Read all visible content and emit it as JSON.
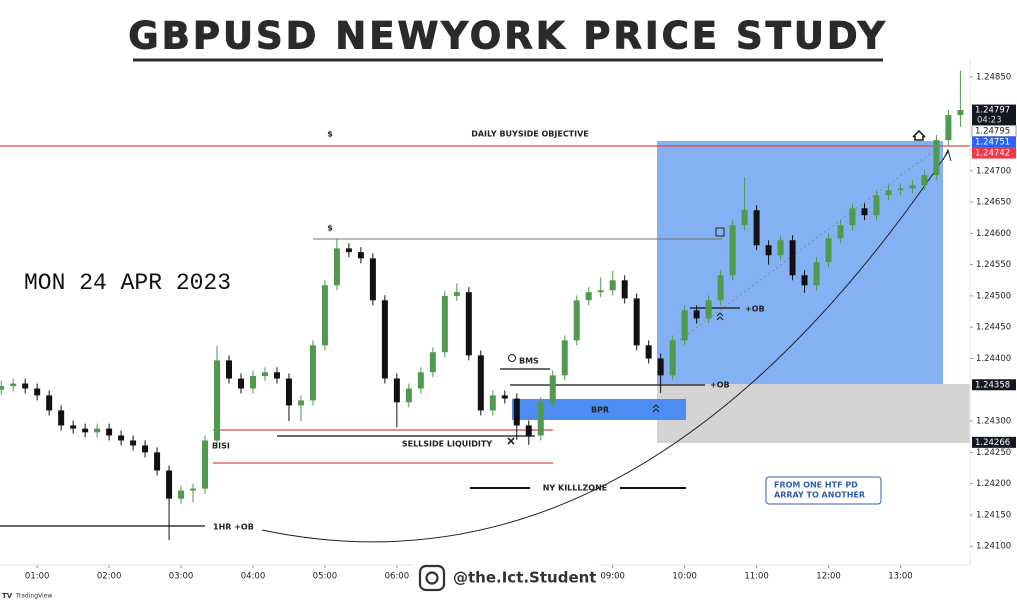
{
  "chart_data": {
    "type": "candlestick",
    "title": "GBPUSD NEWYORK PRICE STUDY",
    "date": "MON 24 APR 2023",
    "x": [
      30,
      40,
      50,
      60,
      70,
      80,
      90,
      100,
      110,
      120,
      130,
      140,
      150,
      160,
      170,
      180,
      190,
      200,
      210,
      220,
      230,
      240,
      250,
      260,
      270,
      280,
      290,
      300,
      310,
      320,
      330,
      340,
      350,
      360,
      370,
      380,
      390,
      400,
      410,
      420,
      430,
      440,
      450,
      460,
      470,
      480,
      490,
      500,
      510,
      520,
      530,
      540,
      550,
      560,
      570,
      580,
      590,
      600,
      610,
      620,
      630,
      640,
      650,
      660,
      670,
      680,
      690,
      700,
      710,
      720,
      730,
      740,
      750,
      760,
      770,
      780,
      790,
      800,
      810,
      820,
      830
    ],
    "open": [
      1.2435,
      1.24356,
      1.2436,
      1.24352,
      1.24341,
      1.24317,
      1.24293,
      1.24288,
      1.24282,
      1.24288,
      1.24277,
      1.24269,
      1.24261,
      1.2425,
      1.24221,
      1.24176,
      1.24189,
      1.24192,
      1.24269,
      1.24397,
      1.24368,
      1.24352,
      1.24372,
      1.24378,
      1.24368,
      1.24325,
      1.24333,
      1.24421,
      1.24517,
      1.24576,
      1.2457,
      1.2456,
      1.24493,
      1.24368,
      1.2433,
      1.24352,
      1.24378,
      1.2441,
      1.245,
      1.24506,
      1.24405,
      1.24317,
      1.24341,
      1.24336,
      1.24293,
      1.24277,
      1.2433,
      1.24373,
      1.24429,
      1.24493,
      1.24506,
      1.24509,
      1.24525,
      1.24496,
      1.24421,
      1.244,
      1.24373,
      1.24429,
      1.24477,
      1.24464,
      1.24493,
      1.24533,
      1.24613,
      1.24637,
      1.24581,
      1.24565,
      1.24589,
      1.24533,
      1.24517,
      1.24554,
      1.24592,
      1.24613,
      1.2464,
      1.24629,
      1.24661,
      1.24669,
      1.24672,
      1.24677,
      1.24693,
      1.24749,
      1.24789
    ],
    "high": [
      1.24364,
      1.24368,
      1.24368,
      1.2436,
      1.24349,
      1.24325,
      1.24301,
      1.24296,
      1.24296,
      1.24296,
      1.24285,
      1.24277,
      1.24269,
      1.24258,
      1.24229,
      1.24197,
      1.242,
      1.24277,
      1.2442,
      1.24405,
      1.24376,
      1.2438,
      1.24386,
      1.24386,
      1.24376,
      1.24341,
      1.24429,
      1.24525,
      1.24592,
      1.24584,
      1.24578,
      1.24568,
      1.24501,
      1.24376,
      1.2436,
      1.24386,
      1.24418,
      1.24508,
      1.2452,
      1.24514,
      1.24413,
      1.24349,
      1.24349,
      1.24344,
      1.24301,
      1.24338,
      1.24381,
      1.24437,
      1.24501,
      1.24514,
      1.2453,
      1.2454,
      1.24533,
      1.24504,
      1.24429,
      1.24408,
      1.24437,
      1.24485,
      1.24485,
      1.24501,
      1.24541,
      1.24621,
      1.2469,
      1.24645,
      1.24589,
      1.24597,
      1.24597,
      1.24541,
      1.24562,
      1.246,
      1.24621,
      1.24648,
      1.24648,
      1.24669,
      1.24677,
      1.2468,
      1.24685,
      1.24701,
      1.24757,
      1.24797,
      1.2486
    ],
    "low": [
      1.24342,
      1.24348,
      1.24344,
      1.24333,
      1.24309,
      1.24285,
      1.2428,
      1.24274,
      1.24274,
      1.24269,
      1.24261,
      1.24253,
      1.24242,
      1.24213,
      1.2411,
      1.24168,
      1.2417,
      1.24184,
      1.24261,
      1.2436,
      1.24344,
      1.24344,
      1.24364,
      1.2436,
      1.243,
      1.243,
      1.24325,
      1.24413,
      1.24509,
      1.24562,
      1.24552,
      1.24485,
      1.2436,
      1.2429,
      1.24322,
      1.24344,
      1.2437,
      1.24402,
      1.24492,
      1.24397,
      1.24309,
      1.24309,
      1.24328,
      1.2427,
      1.24262,
      1.24269,
      1.24322,
      1.24365,
      1.24421,
      1.24485,
      1.24498,
      1.24501,
      1.24488,
      1.24413,
      1.24392,
      1.24345,
      1.24365,
      1.24421,
      1.24456,
      1.24456,
      1.24485,
      1.24525,
      1.24605,
      1.24573,
      1.2455,
      1.24557,
      1.24525,
      1.24505,
      1.24509,
      1.24546,
      1.24584,
      1.24605,
      1.24621,
      1.24621,
      1.24653,
      1.24661,
      1.24664,
      1.24669,
      1.24685,
      1.24741,
      1.2477
    ],
    "close": [
      1.24356,
      1.2436,
      1.24352,
      1.24341,
      1.24317,
      1.24293,
      1.24288,
      1.24282,
      1.24288,
      1.24277,
      1.24269,
      1.24261,
      1.2425,
      1.24221,
      1.24176,
      1.24189,
      1.24192,
      1.24269,
      1.24397,
      1.24368,
      1.24352,
      1.24372,
      1.24378,
      1.24368,
      1.24325,
      1.24333,
      1.24421,
      1.24517,
      1.24576,
      1.2457,
      1.2456,
      1.24493,
      1.24368,
      1.2433,
      1.24352,
      1.24378,
      1.2441,
      1.245,
      1.24506,
      1.24405,
      1.24317,
      1.24341,
      1.24336,
      1.24293,
      1.24277,
      1.2433,
      1.24373,
      1.24429,
      1.24493,
      1.24506,
      1.24509,
      1.24525,
      1.24496,
      1.24421,
      1.244,
      1.24373,
      1.24429,
      1.24477,
      1.24464,
      1.24493,
      1.24533,
      1.24613,
      1.24637,
      1.24581,
      1.24565,
      1.24589,
      1.24533,
      1.24517,
      1.24554,
      1.24592,
      1.24613,
      1.2464,
      1.24629,
      1.24661,
      1.24669,
      1.24672,
      1.24677,
      1.24693,
      1.24749,
      1.24789,
      1.24797
    ],
    "up_color": "#4f9a4f",
    "down_color": "#111111",
    "xlim": [
      29,
      838
    ],
    "ylim": [
      1.2407,
      1.24877
    ],
    "xticks": [
      {
        "value": 60,
        "label": "01:00"
      },
      {
        "value": 120,
        "label": "02:00"
      },
      {
        "value": 180,
        "label": "03:00"
      },
      {
        "value": 240,
        "label": "04:00"
      },
      {
        "value": 300,
        "label": "05:00"
      },
      {
        "value": 360,
        "label": "06:00"
      },
      {
        "value": 540,
        "label": "09:00"
      },
      {
        "value": 600,
        "label": "10:00"
      },
      {
        "value": 660,
        "label": "11:00"
      },
      {
        "value": 720,
        "label": "12:00"
      },
      {
        "value": 780,
        "label": "13:00"
      }
    ],
    "yticks": [
      {
        "value": 1.2485,
        "label": "1.24850"
      },
      {
        "value": 1.247,
        "label": "1.24700"
      },
      {
        "value": 1.2465,
        "label": "1.24650"
      },
      {
        "value": 1.246,
        "label": "1.24600"
      },
      {
        "value": 1.2455,
        "label": "1.24550"
      },
      {
        "value": 1.245,
        "label": "1.24500"
      },
      {
        "value": 1.2445,
        "label": "1.24450"
      },
      {
        "value": 1.244,
        "label": "1.24400"
      },
      {
        "value": 1.243,
        "label": "1.24300"
      },
      {
        "value": 1.2425,
        "label": "1.24250"
      },
      {
        "value": 1.242,
        "label": "1.24200"
      },
      {
        "value": 1.2415,
        "label": "1.24150"
      },
      {
        "value": 1.241,
        "label": "1.24100"
      }
    ],
    "price_markers": [
      {
        "value": 1.24797,
        "color": "#131722"
      },
      {
        "value": 1.24795,
        "color": "#ffffff"
      },
      {
        "value": 1.24751,
        "color": "#2962ff"
      },
      {
        "value": 1.24742,
        "color": "#f23645"
      },
      {
        "value": 1.24358,
        "color": "#131722"
      },
      {
        "value": 1.24266,
        "color": "#131722"
      }
    ],
    "countdown": "04:23",
    "annotations": {
      "daily_buyside": "DAILY BUYSIDE OBJECTIVE",
      "dollar_top": "$",
      "dollar_mid": "$",
      "bisi": "BISI",
      "sellside": "SELLSIDE LIQUIDITY",
      "bms": "BMS",
      "bpr": "BPR",
      "ob_1": "+OB",
      "ob_2": "+OB",
      "killzone": "NY KILLLZONE",
      "hr_ob": "1HR +OB",
      "htf_1": "FROM ONE HTF PD",
      "htf_2": "ARRAY TO ANOTHER"
    },
    "watermark": "@the.Ict.Student",
    "platform": "TradingView"
  }
}
